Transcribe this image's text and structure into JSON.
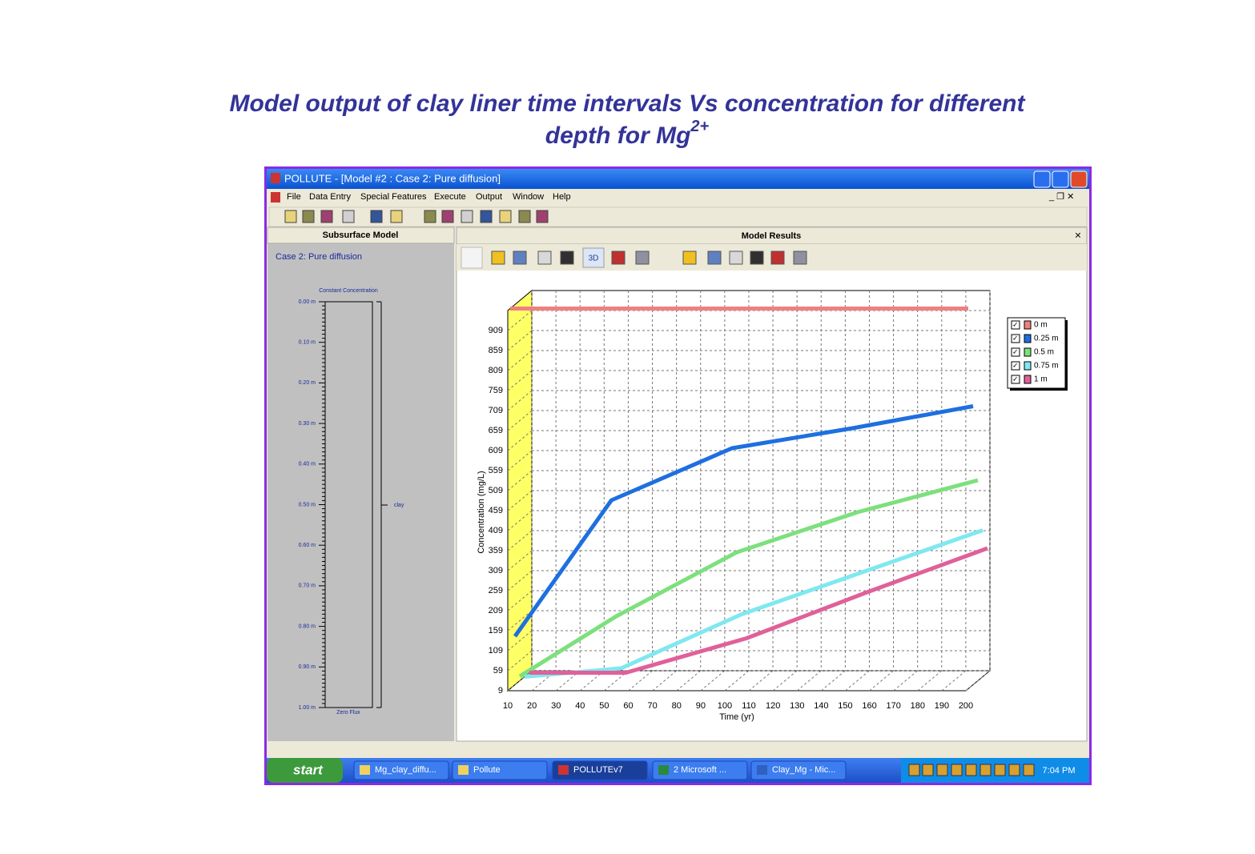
{
  "page": {
    "title_line1": "Model output of clay liner time intervals Vs concentration for different",
    "title_line2": "depth for Mg",
    "title_superscript": "2+"
  },
  "window": {
    "title": "POLLUTE - [Model #2  :  Case 2: Pure diffusion]",
    "menu": [
      "File",
      "Data Entry",
      "Special Features",
      "Execute",
      "Output",
      "Window",
      "Help"
    ]
  },
  "subsurface": {
    "header": "Subsurface Model",
    "case": "Case 2: Pure diffusion",
    "top_label": "Constant Concentration",
    "bottom_label": "Zero Flux",
    "layer": "clay",
    "depths": [
      "0.00 m",
      "0.10 m",
      "0.20 m",
      "0.30 m",
      "0.40 m",
      "0.50 m",
      "0.60 m",
      "0.70 m",
      "0.80 m",
      "0.90 m",
      "1.00 m"
    ]
  },
  "results": {
    "header": "Model Results",
    "toolbar_3d": "3D"
  },
  "chart_data": {
    "type": "line",
    "title": "Case 2: Pure diffusion",
    "x_label": "Time (yr)",
    "y_label": "Concentration (mg/L)",
    "x": [
      10,
      50,
      100,
      150,
      200
    ],
    "series": [
      {
        "name": "0 m",
        "color": "#f08080",
        "values": [
          959,
          959,
          959,
          959,
          959
        ]
      },
      {
        "name": "0.25 m",
        "color": "#1e6fe0",
        "values": [
          130,
          470,
          600,
          650,
          705
        ]
      },
      {
        "name": "0.5 m",
        "color": "#7de07d",
        "values": [
          20,
          170,
          330,
          430,
          510
        ]
      },
      {
        "name": "0.75 m",
        "color": "#7fe8f0",
        "values": [
          9,
          30,
          165,
          270,
          375
        ]
      },
      {
        "name": "1 m",
        "color": "#e0609a",
        "values": [
          9,
          9,
          95,
          210,
          320
        ]
      }
    ],
    "xlim": [
      10,
      200
    ],
    "ylim": [
      9,
      959
    ],
    "xticks": [
      10,
      20,
      30,
      40,
      50,
      60,
      70,
      80,
      90,
      100,
      110,
      120,
      130,
      140,
      150,
      160,
      170,
      180,
      190,
      200
    ],
    "yticks": [
      9,
      59,
      109,
      159,
      209,
      259,
      309,
      359,
      409,
      459,
      509,
      559,
      609,
      659,
      709,
      759,
      809,
      859,
      909
    ],
    "grid": true,
    "legend": "right"
  },
  "taskbar": {
    "start": "start",
    "items": [
      "Mg_clay_diffu...",
      "Pollute",
      "POLLUTEv7",
      "2 Microsoft ...",
      "Clay_Mg - Mic..."
    ],
    "clock": "7:04 PM"
  }
}
